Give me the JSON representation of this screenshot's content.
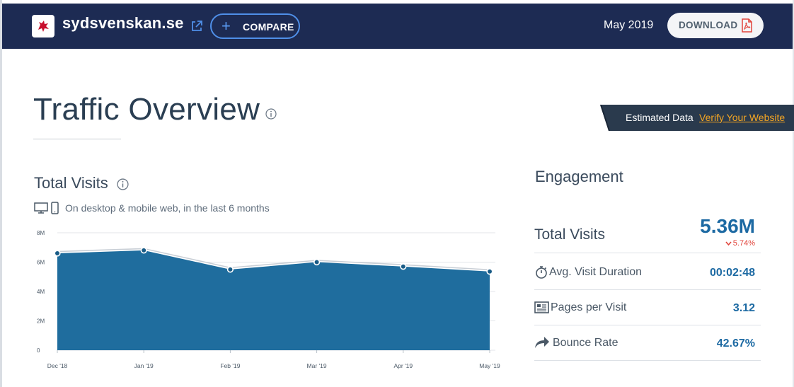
{
  "header": {
    "site_name": "sydsvenskan.se",
    "compare_label": "COMPARE",
    "month": "May 2019",
    "download_label": "DOWNLOAD"
  },
  "page_title": "Traffic Overview",
  "banner": {
    "estimated": "Estimated Data",
    "verify": "Verify Your Website"
  },
  "total_visits": {
    "title": "Total Visits",
    "subtitle": "On desktop & mobile web, in the last 6 months"
  },
  "chart_data": {
    "type": "area",
    "title": "",
    "x": [
      "Dec '18",
      "Jan '19",
      "Feb '19",
      "Mar '19",
      "Apr '19",
      "May '19"
    ],
    "series": [
      {
        "values": [
          6.6,
          6.8,
          5.5,
          6.0,
          5.7,
          5.36
        ]
      }
    ],
    "y_ticks": [
      "0",
      "2M",
      "4M",
      "6M",
      "8M"
    ],
    "ylim": [
      0,
      8
    ],
    "grid": true,
    "color": "#1f6d9e"
  },
  "engagement": {
    "title": "Engagement",
    "total_visits_label": "Total Visits",
    "total_visits_value": "5.36M",
    "total_visits_change": "5.74%",
    "rows": [
      {
        "label": "Avg. Visit Duration",
        "value": "00:02:48",
        "icon": "stopwatch-icon"
      },
      {
        "label": "Pages per Visit",
        "value": "3.12",
        "icon": "pages-icon"
      },
      {
        "label": "Bounce Rate",
        "value": "42.67%",
        "icon": "bounce-arrow-icon"
      }
    ]
  }
}
